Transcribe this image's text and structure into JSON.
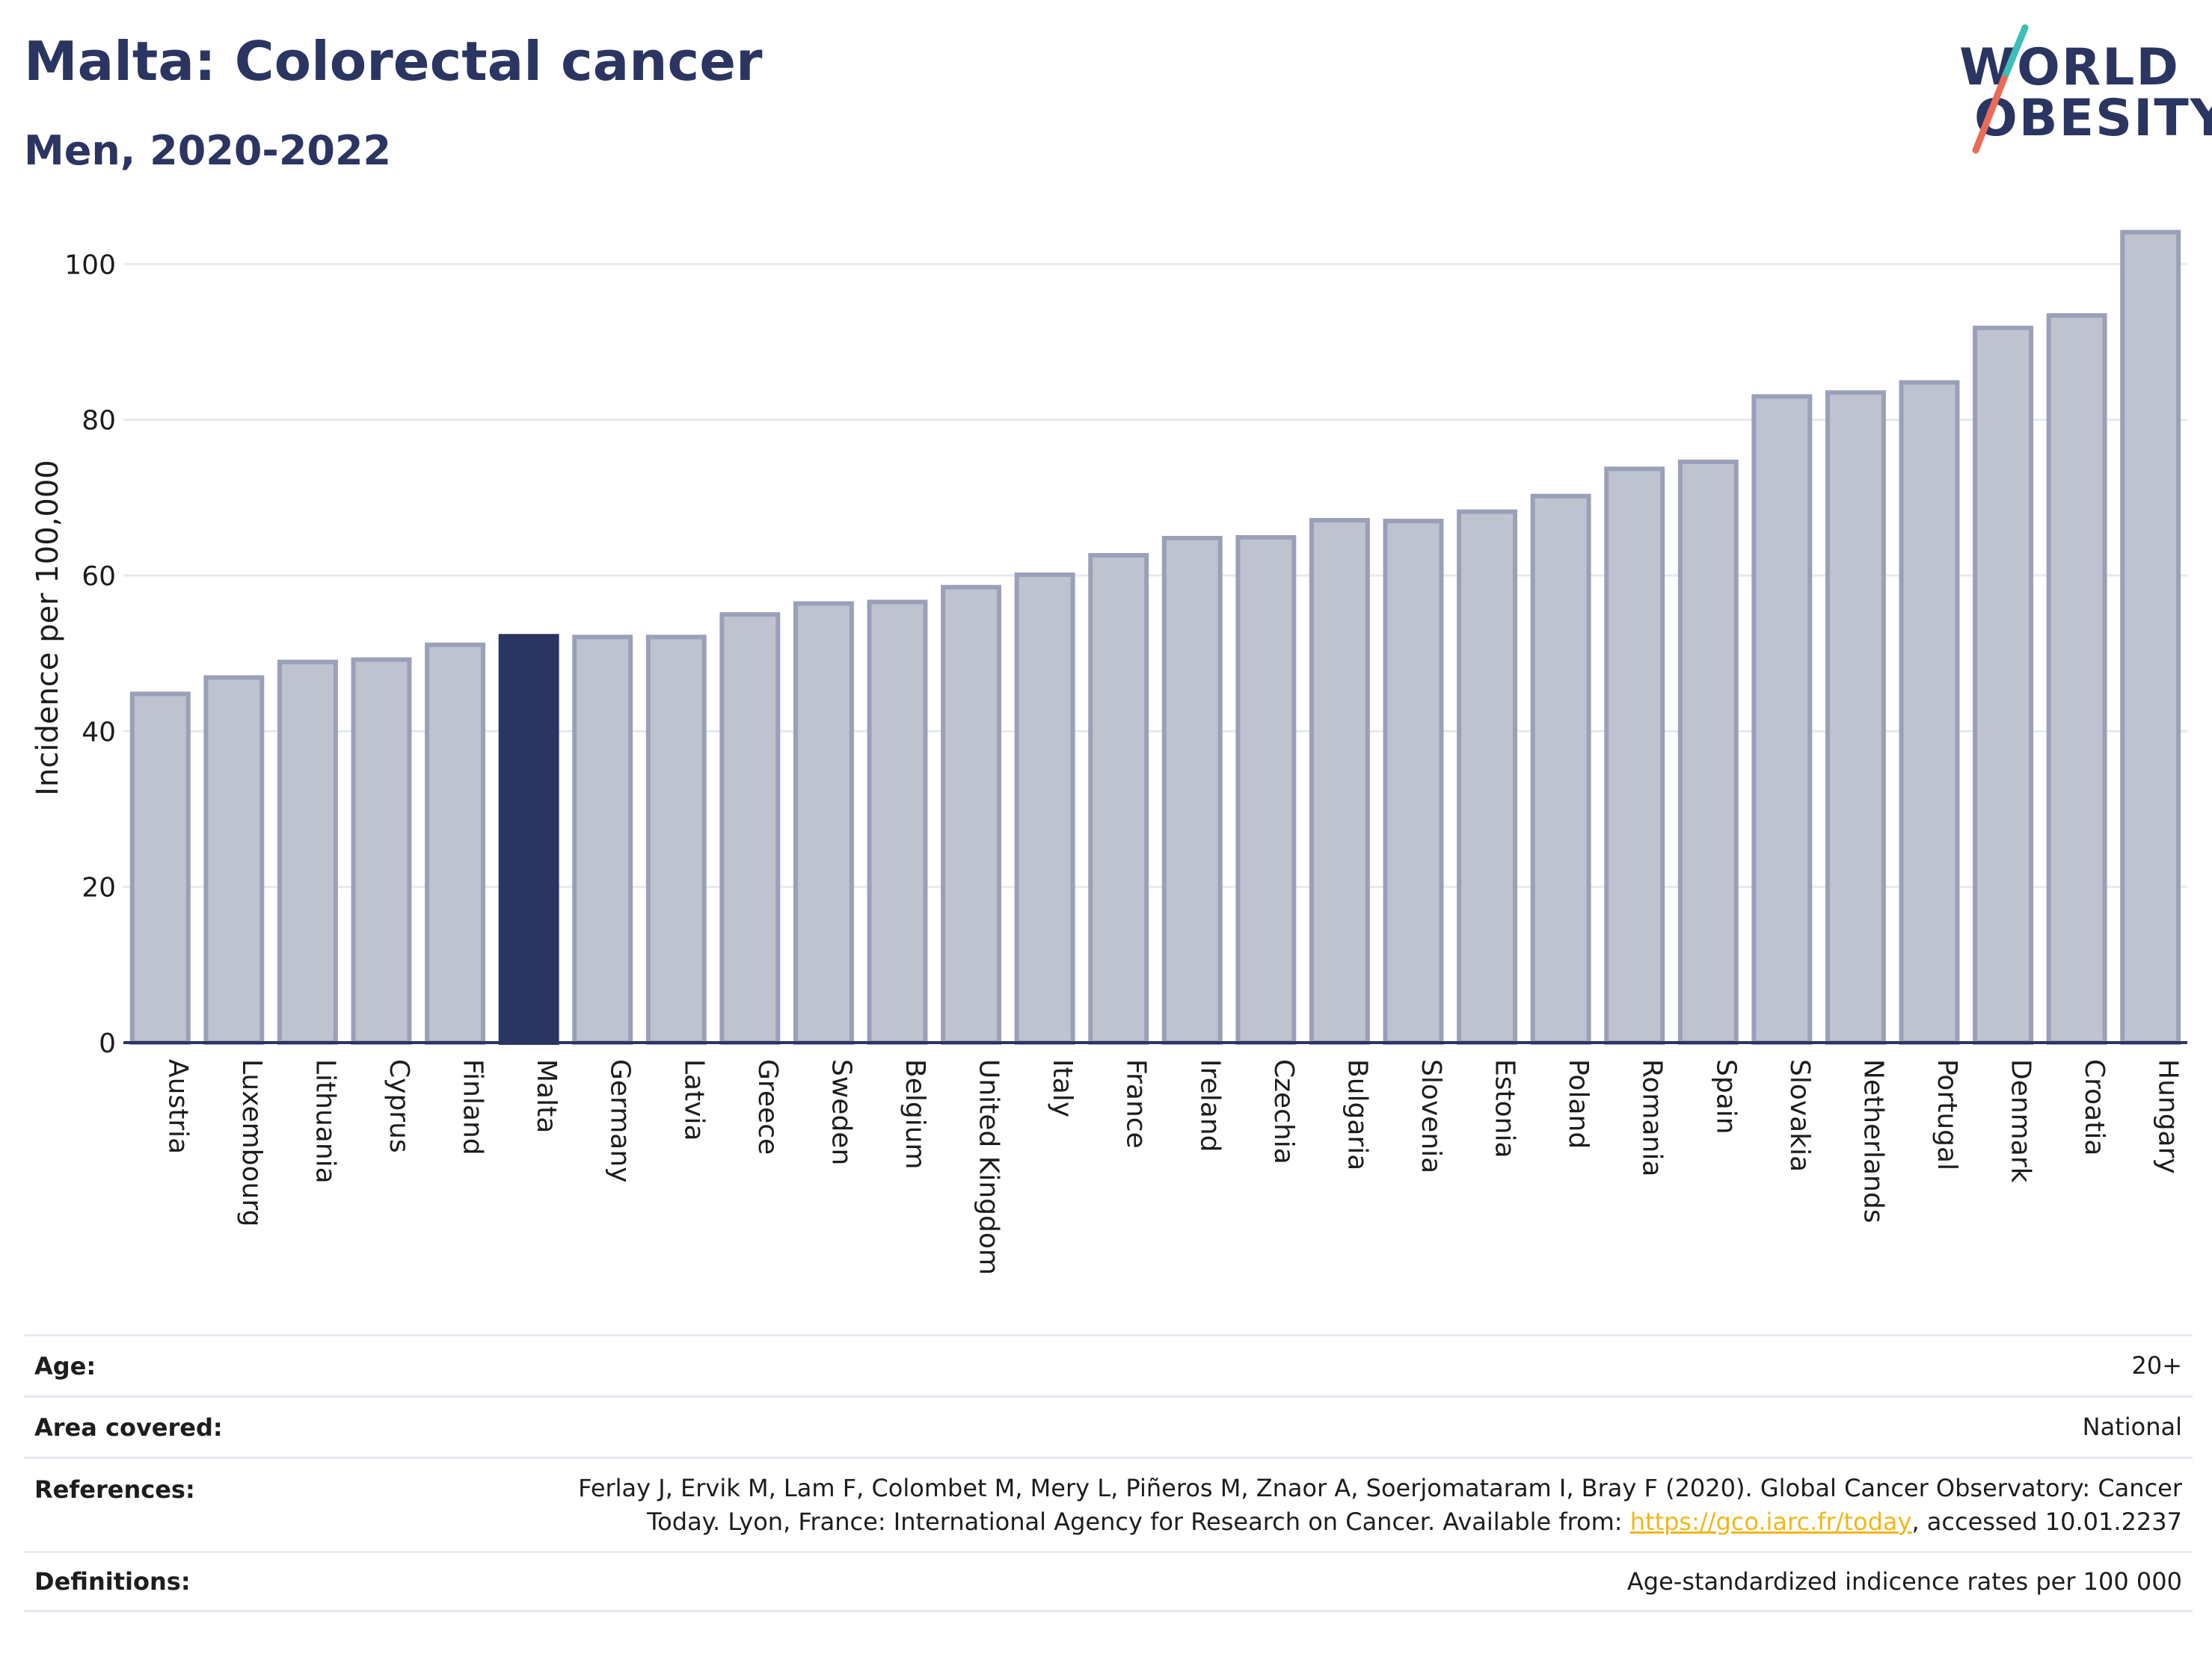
{
  "header": {
    "title": "Malta: Colorectal cancer",
    "subtitle": "Men, 2020-2022"
  },
  "logo": {
    "line1": "WORLD",
    "line2": "OBESITY"
  },
  "colors": {
    "bar": "#bfc3d0",
    "bar_border": "#9aa0b8",
    "highlight": "#2b3561",
    "gridline": "#e8e9ef",
    "axis": "#2b3561",
    "logo_teal": "#3bbfb7",
    "logo_coral": "#ea6b57"
  },
  "chart_data": {
    "type": "bar",
    "ylabel": "Incidence per 100,000",
    "xlabel": "",
    "ylim": [
      0,
      108
    ],
    "yticks": [
      0,
      20,
      40,
      60,
      80,
      100
    ],
    "grid": true,
    "highlight_category": "Malta",
    "categories": [
      "Austria",
      "Luxembourg",
      "Lithuania",
      "Cyprus",
      "Finland",
      "Malta",
      "Germany",
      "Latvia",
      "Greece",
      "Sweden",
      "Belgium",
      "United Kingdom",
      "Italy",
      "France",
      "Ireland",
      "Czechia",
      "Bulgaria",
      "Slovenia",
      "Estonia",
      "Poland",
      "Romania",
      "Spain",
      "Slovakia",
      "Netherlands",
      "Portugal",
      "Denmark",
      "Croatia",
      "Hungary"
    ],
    "values": [
      44.8,
      46.9,
      48.9,
      49.2,
      51.1,
      52.2,
      52.1,
      52.1,
      55.0,
      56.4,
      56.6,
      58.5,
      60.1,
      62.6,
      64.8,
      64.9,
      67.1,
      67.0,
      68.2,
      70.2,
      73.7,
      74.6,
      83.0,
      83.5,
      84.8,
      91.8,
      93.4,
      104.1
    ]
  },
  "info": {
    "age_label": "Age:",
    "age_value": "20+",
    "area_label": "Area covered:",
    "area_value": "National",
    "references_label": "References:",
    "references_line1": "Ferlay J, Ervik M, Lam F, Colombet M, Mery L, Piñeros M, Znaor A, Soerjomataram I, Bray F (2020). Global Cancer Observatory: Cancer",
    "references_line2_pre": "Today. Lyon, France: International Agency for Research on Cancer. Available from: ",
    "references_link": "https://gco.iarc.fr/today",
    "references_line2_post": ", accessed 10.01.2237",
    "definitions_label": "Definitions:",
    "definitions_value": "Age-standardized indicence rates per 100 000"
  }
}
